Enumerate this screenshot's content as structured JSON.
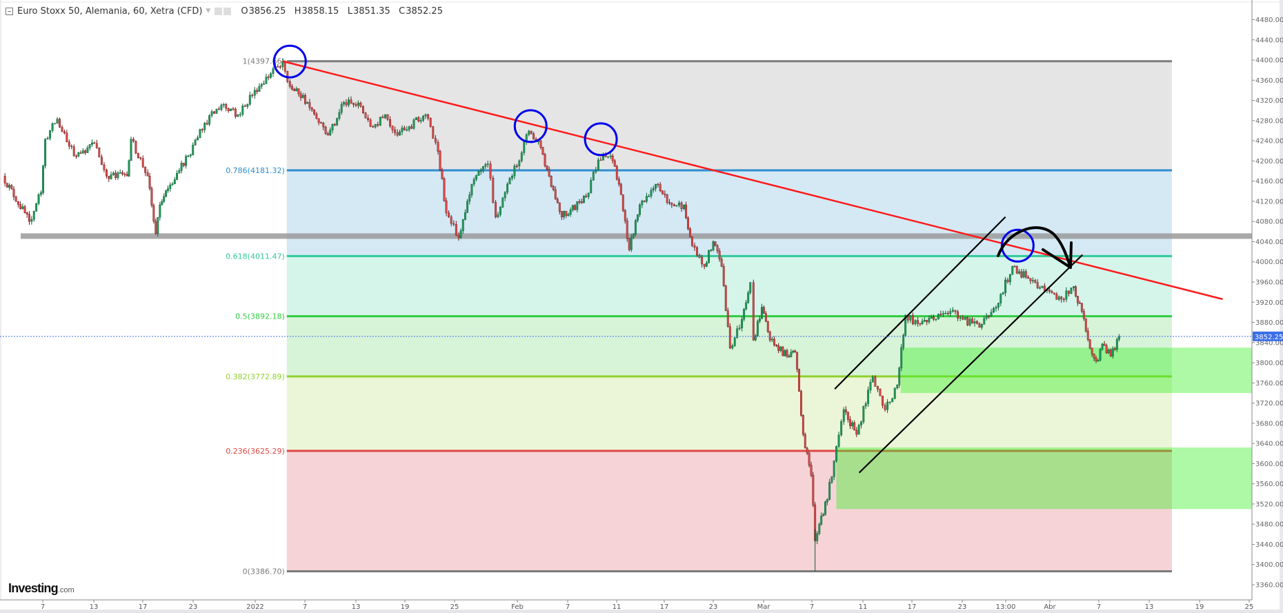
{
  "header": {
    "title": "Euro Stoxx 50, Alemania, 60, Xetra (CFD)",
    "open_label": "O",
    "open": "3856.25",
    "high_label": "H",
    "high": "3858.15",
    "low_label": "L",
    "low": "3851.35",
    "close_label": "C",
    "close": "3852.25",
    "icons": [
      "collapse-icon",
      "dropdown-caret-icon",
      "eye-icon",
      "gear-icon"
    ]
  },
  "logo": {
    "name": "Investing",
    "suffix": ".com"
  },
  "chart_data": {
    "type": "candlestick",
    "title": "",
    "interval": "60",
    "ylim": [
      3330,
      4510
    ],
    "y_ticks": [
      "4480.00",
      "4440.00",
      "4400.00",
      "4360.00",
      "4320.00",
      "4280.00",
      "4240.00",
      "4200.00",
      "4160.00",
      "4120.00",
      "4080.00",
      "4040.00",
      "4000.00",
      "3960.00",
      "3920.00",
      "3880.00",
      "3840.00",
      "3800.00",
      "3760.00",
      "3720.00",
      "3680.00",
      "3640.00",
      "3600.00",
      "3560.00",
      "3520.00",
      "3480.00",
      "3440.00",
      "3400.00",
      "3360.00"
    ],
    "x_ticks": [
      {
        "label": "7",
        "date": "2021-12-07"
      },
      {
        "label": "13",
        "date": "2021-12-13"
      },
      {
        "label": "17",
        "date": "2021-12-17"
      },
      {
        "label": "23",
        "date": "2021-12-23"
      },
      {
        "label": "2022",
        "date": "2022-01-03"
      },
      {
        "label": "7",
        "date": "2022-01-07"
      },
      {
        "label": "13",
        "date": "2022-01-13"
      },
      {
        "label": "19",
        "date": "2022-01-19"
      },
      {
        "label": "25",
        "date": "2022-01-25"
      },
      {
        "label": "Feb",
        "date": "2022-02-01"
      },
      {
        "label": "7",
        "date": "2022-02-07"
      },
      {
        "label": "11",
        "date": "2022-02-11"
      },
      {
        "label": "17",
        "date": "2022-02-17"
      },
      {
        "label": "23",
        "date": "2022-02-23"
      },
      {
        "label": "Mar",
        "date": "2022-03-01"
      },
      {
        "label": "7",
        "date": "2022-03-07"
      },
      {
        "label": "11",
        "date": "2022-03-11"
      },
      {
        "label": "17",
        "date": "2022-03-17"
      },
      {
        "label": "23",
        "date": "2022-03-23"
      },
      {
        "label": "13:00",
        "date": "2022-03-29T13:00"
      },
      {
        "label": "Abr",
        "date": "2022-04-01"
      },
      {
        "label": "7",
        "date": "2022-04-07"
      },
      {
        "label": "13",
        "date": "2022-04-13"
      },
      {
        "label": "19",
        "date": "2022-04-19"
      },
      {
        "label": "25",
        "date": "2022-04-25"
      }
    ],
    "current_price": {
      "value": 3852.25,
      "label": "3852.25",
      "color": "#3b6fe8"
    },
    "price_path": [
      [
        "2021-12-02T07",
        4170
      ],
      [
        "2021-12-05T10",
        4080
      ],
      [
        "2021-12-06T19",
        4137
      ],
      [
        "2021-12-07T07",
        4243
      ],
      [
        "2021-12-08T17",
        4283
      ],
      [
        "2021-12-10T16",
        4210
      ],
      [
        "2021-12-13T01",
        4235
      ],
      [
        "2021-12-14T01",
        4170
      ],
      [
        "2021-12-15T17",
        4170
      ],
      [
        "2021-12-16T01",
        4243
      ],
      [
        "2021-12-17T14",
        4170
      ],
      [
        "2021-12-18T13",
        4056
      ],
      [
        "2021-12-19T01",
        4113
      ],
      [
        "2021-12-20T00",
        4145
      ],
      [
        "2021-12-22T10",
        4210
      ],
      [
        "2021-12-25T01",
        4275
      ],
      [
        "2021-12-28T00",
        4311
      ],
      [
        "2021-12-30T22",
        4292
      ],
      [
        "2022-01-02T22",
        4340
      ],
      [
        "2022-01-04T06",
        4373
      ],
      [
        "2022-01-05T05",
        4397
      ],
      [
        "2022-01-05T19",
        4348
      ],
      [
        "2022-01-07T07",
        4316
      ],
      [
        "2022-01-09T17",
        4251
      ],
      [
        "2022-01-11T14",
        4316
      ],
      [
        "2022-01-13T14",
        4308
      ],
      [
        "2022-01-15T02",
        4267
      ],
      [
        "2022-01-16T14",
        4292
      ],
      [
        "2022-01-18T02",
        4251
      ],
      [
        "2022-01-21T12",
        4292
      ],
      [
        "2022-01-23T00",
        4219
      ],
      [
        "2022-01-24T00",
        4097
      ],
      [
        "2022-01-25T11",
        4048
      ],
      [
        "2022-01-26T22",
        4154
      ],
      [
        "2022-01-28T17",
        4194
      ],
      [
        "2022-01-29T14",
        4089
      ],
      [
        "2022-01-31T10",
        4170
      ],
      [
        "2022-02-02T09",
        4259
      ],
      [
        "2022-02-03T19",
        4227
      ],
      [
        "2022-02-04T19",
        4170
      ],
      [
        "2022-02-06T07",
        4089
      ],
      [
        "2022-02-08T12",
        4129
      ],
      [
        "2022-02-09T12",
        4202
      ],
      [
        "2022-02-10T12",
        4210
      ],
      [
        "2022-02-11T07",
        4154
      ],
      [
        "2022-02-12T14",
        4024
      ],
      [
        "2022-02-13T22",
        4113
      ],
      [
        "2022-02-15T22",
        4154
      ],
      [
        "2022-02-17T22",
        4113
      ],
      [
        "2022-02-19T10",
        4113
      ],
      [
        "2022-02-20T10",
        4032
      ],
      [
        "2022-02-21T22",
        3991
      ],
      [
        "2022-02-23T00",
        4040
      ],
      [
        "2022-02-24T00",
        3991
      ],
      [
        "2022-02-25T00",
        3829
      ],
      [
        "2022-02-26T10",
        3886
      ],
      [
        "2022-02-27T10",
        3959
      ],
      [
        "2022-02-27T19",
        3845
      ],
      [
        "2022-02-28T19",
        3910
      ],
      [
        "2022-03-01T19",
        3845
      ],
      [
        "2022-03-03T22",
        3813
      ],
      [
        "2022-03-04T22",
        3821
      ],
      [
        "2022-03-05T22",
        3658
      ],
      [
        "2022-03-06T22",
        3577
      ],
      [
        "2022-03-07T06",
        3447
      ],
      [
        "2022-03-07T14",
        3480
      ],
      [
        "2022-03-08T05",
        3529
      ],
      [
        "2022-03-08T22",
        3634
      ],
      [
        "2022-03-09T12",
        3707
      ],
      [
        "2022-03-10T12",
        3658
      ],
      [
        "2022-03-12T05",
        3772
      ],
      [
        "2022-03-13T17",
        3707
      ],
      [
        "2022-03-15T05",
        3756
      ],
      [
        "2022-03-16T05",
        3894
      ],
      [
        "2022-03-17T17",
        3878
      ],
      [
        "2022-03-19T14",
        3886
      ],
      [
        "2022-03-21T14",
        3902
      ],
      [
        "2022-03-23T02",
        3886
      ],
      [
        "2022-03-25T14",
        3870
      ],
      [
        "2022-03-28T02",
        3910
      ],
      [
        "2022-03-29T22",
        3991
      ],
      [
        "2022-03-30T19",
        3967
      ],
      [
        "2022-03-31T17",
        3943
      ],
      [
        "2022-04-02T10",
        3926
      ],
      [
        "2022-04-03T22",
        3951
      ],
      [
        "2022-04-04T22",
        3902
      ],
      [
        "2022-04-05T22",
        3829
      ],
      [
        "2022-04-06T22",
        3805
      ],
      [
        "2022-04-07T10",
        3837
      ],
      [
        "2022-04-08T10",
        3813
      ],
      [
        "2022-04-09T10",
        3852
      ]
    ],
    "fibonacci": {
      "start": "2022-01-05T13",
      "end": "2022-04-15T17",
      "levels": [
        {
          "ratio": "1",
          "price": 4397.66,
          "label": "1(4397.66)",
          "color": "#7a7a7a",
          "fill": "#e5e5e5"
        },
        {
          "ratio": "0.786",
          "price": 4181.32,
          "label": "0.786(4181.32)",
          "color": "#2e8ccf",
          "fill": "#d4e9f4"
        },
        {
          "ratio": "0.618",
          "price": 4011.47,
          "label": "0.618(4011.47)",
          "color": "#2ec99a",
          "fill": "#d5f4ea"
        },
        {
          "ratio": "0.5",
          "price": 3892.18,
          "label": "0.5(3892.18)",
          "color": "#2ecc40",
          "fill": "#d7f3d8"
        },
        {
          "ratio": "0.382",
          "price": 3772.89,
          "label": "0.382(3772.89)",
          "color": "#8fd12e",
          "fill": "#ebf5d7"
        },
        {
          "ratio": "0.236",
          "price": 3625.29,
          "label": "0.236(3625.29)",
          "color": "#e04545",
          "fill": "#f5d3d6"
        },
        {
          "ratio": "0",
          "price": 3386.7,
          "label": "0(3386.70)",
          "color": "#7a7a7a",
          "fill": ""
        }
      ]
    },
    "support_band": {
      "price": 4051,
      "color": "#9a9a9a"
    },
    "trendline": {
      "from": [
        "2022-01-05T05",
        4397.66
      ],
      "to": [
        "2022-04-21T19",
        3926
      ],
      "color": "#ff1a1a"
    },
    "channel_lines": [
      {
        "from": [
          "2022-03-08T19",
          3748
        ],
        "to": [
          "2022-03-29T12",
          4089
        ],
        "color": "#000000"
      },
      {
        "from": [
          "2022-03-10T17",
          3582
        ],
        "to": [
          "2022-04-05T00",
          4014
        ],
        "color": "#000000"
      }
    ],
    "circles": [
      {
        "date": "2022-01-05T19",
        "price": 4397,
        "color": "#0000ee"
      },
      {
        "date": "2022-02-02T14",
        "price": 4269,
        "color": "#0000ee"
      },
      {
        "date": "2022-02-09T17",
        "price": 4243,
        "color": "#0000ee"
      },
      {
        "date": "2022-03-30T05",
        "price": 4032,
        "color": "#0000ee"
      }
    ],
    "zones": [
      {
        "from": "2022-03-15T15",
        "top": 3830,
        "bottom": 3740,
        "color": "rgba(60,240,40,0.42)"
      },
      {
        "from": "2022-03-08T22",
        "top": 3632,
        "bottom": 3510,
        "color": "rgba(60,240,40,0.42)"
      }
    ],
    "colors": {
      "up": "#1f9a5a",
      "down": "#e24a4a",
      "grid": "none"
    }
  }
}
